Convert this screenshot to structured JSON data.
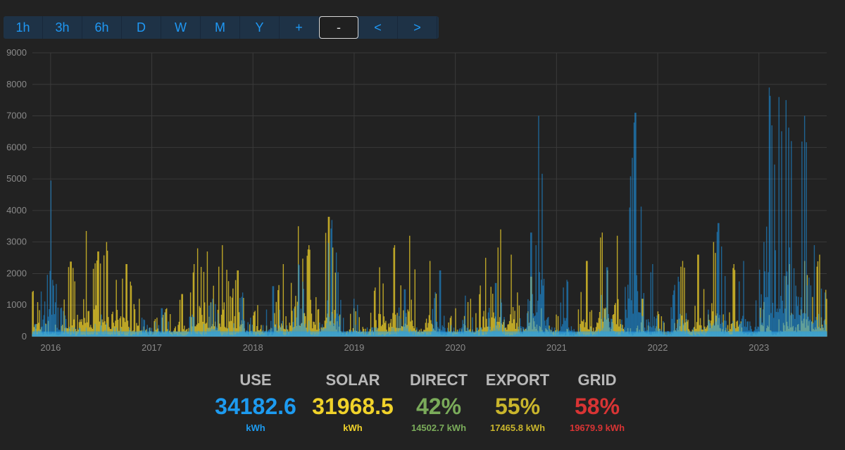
{
  "toolbar": {
    "buttons": [
      "1h",
      "3h",
      "6h",
      "D",
      "W",
      "M",
      "Y",
      "+",
      "-",
      "<",
      ">"
    ],
    "active": "-",
    "accent": "#1f98f4"
  },
  "chart_data": {
    "type": "area",
    "title": "",
    "xlabel": "",
    "ylabel": "",
    "ylim": [
      0,
      9000
    ],
    "y_ticks": [
      0,
      1000,
      2000,
      3000,
      4000,
      5000,
      6000,
      7000,
      8000,
      9000
    ],
    "x_tick_labels": [
      "2016",
      "2017",
      "2018",
      "2019",
      "2020",
      "2021",
      "2022",
      "2023"
    ],
    "x_range_years": [
      2015.82,
      2023.67
    ],
    "grid": true,
    "series": [
      {
        "color": "#f0d22a",
        "peaks": [
          [
            2015.83,
            1450
          ],
          [
            2015.98,
            500
          ],
          [
            2016.05,
            380
          ],
          [
            2016.2,
            2380
          ],
          [
            2016.35,
            3350
          ],
          [
            2016.42,
            2150
          ],
          [
            2016.47,
            2700
          ],
          [
            2016.55,
            3000
          ],
          [
            2016.65,
            1800
          ],
          [
            2016.75,
            2300
          ],
          [
            2016.88,
            1200
          ],
          [
            2017.05,
            600
          ],
          [
            2017.15,
            900
          ],
          [
            2017.3,
            1350
          ],
          [
            2017.45,
            2800
          ],
          [
            2017.55,
            2700
          ],
          [
            2017.7,
            2900
          ],
          [
            2017.85,
            2100
          ],
          [
            2018.05,
            1000
          ],
          [
            2018.3,
            2300
          ],
          [
            2018.45,
            3500
          ],
          [
            2018.55,
            2900
          ],
          [
            2018.75,
            3800
          ],
          [
            2019.0,
            900
          ],
          [
            2019.25,
            2200
          ],
          [
            2019.4,
            2900
          ],
          [
            2019.55,
            3200
          ],
          [
            2019.75,
            2400
          ],
          [
            2020.0,
            900
          ],
          [
            2020.15,
            1200
          ],
          [
            2020.3,
            2500
          ],
          [
            2020.45,
            3400
          ],
          [
            2020.55,
            2600
          ],
          [
            2020.75,
            1900
          ],
          [
            2020.85,
            900
          ],
          [
            2021.0,
            700
          ],
          [
            2021.3,
            2400
          ],
          [
            2021.45,
            3300
          ],
          [
            2021.6,
            3200
          ],
          [
            2021.85,
            1200
          ],
          [
            2022.0,
            800
          ],
          [
            2022.25,
            2400
          ],
          [
            2022.4,
            2600
          ],
          [
            2022.55,
            3000
          ],
          [
            2022.75,
            2300
          ],
          [
            2023.05,
            1100
          ],
          [
            2023.3,
            2300
          ],
          [
            2023.45,
            2400
          ],
          [
            2023.6,
            2600
          ]
        ],
        "base": 250
      },
      {
        "color": "#1d9bf0",
        "peaks": [
          [
            2015.85,
            400
          ],
          [
            2016.0,
            4950
          ],
          [
            2016.02,
            1800
          ],
          [
            2016.1,
            900
          ],
          [
            2016.5,
            700
          ],
          [
            2016.9,
            600
          ],
          [
            2017.1,
            900
          ],
          [
            2017.4,
            700
          ],
          [
            2017.6,
            1200
          ],
          [
            2017.9,
            1400
          ],
          [
            2018.2,
            1600
          ],
          [
            2018.45,
            2300
          ],
          [
            2018.78,
            3700
          ],
          [
            2019.0,
            1200
          ],
          [
            2019.5,
            1500
          ],
          [
            2019.85,
            2100
          ],
          [
            2020.1,
            1300
          ],
          [
            2020.4,
            1700
          ],
          [
            2020.75,
            3300
          ],
          [
            2020.82,
            7000
          ],
          [
            2021.1,
            1800
          ],
          [
            2021.5,
            2200
          ],
          [
            2021.78,
            7100
          ],
          [
            2021.95,
            2300
          ],
          [
            2022.2,
            1900
          ],
          [
            2022.6,
            3600
          ],
          [
            2022.85,
            2400
          ],
          [
            2023.05,
            3000
          ],
          [
            2023.1,
            7900
          ],
          [
            2023.2,
            7600
          ],
          [
            2023.27,
            7500
          ],
          [
            2023.32,
            6200
          ],
          [
            2023.45,
            7000
          ],
          [
            2023.55,
            2900
          ],
          [
            2023.65,
            1400
          ]
        ],
        "base": 300
      }
    ]
  },
  "stats": [
    {
      "label": "USE",
      "value": "34182.6",
      "sub": "kWh",
      "color": "#1d9bf0"
    },
    {
      "label": "SOLAR",
      "value": "31968.5",
      "sub": "kWh",
      "color": "#f0d22a"
    },
    {
      "label": "DIRECT",
      "value": "42%",
      "sub": "14502.7 kWh",
      "color": "#7aab5a"
    },
    {
      "label": "EXPORT",
      "value": "55%",
      "sub": "17465.8 kWh",
      "color": "#c9b52c"
    },
    {
      "label": "GRID",
      "value": "58%",
      "sub": "19679.9 kWh",
      "color": "#d83434"
    }
  ]
}
